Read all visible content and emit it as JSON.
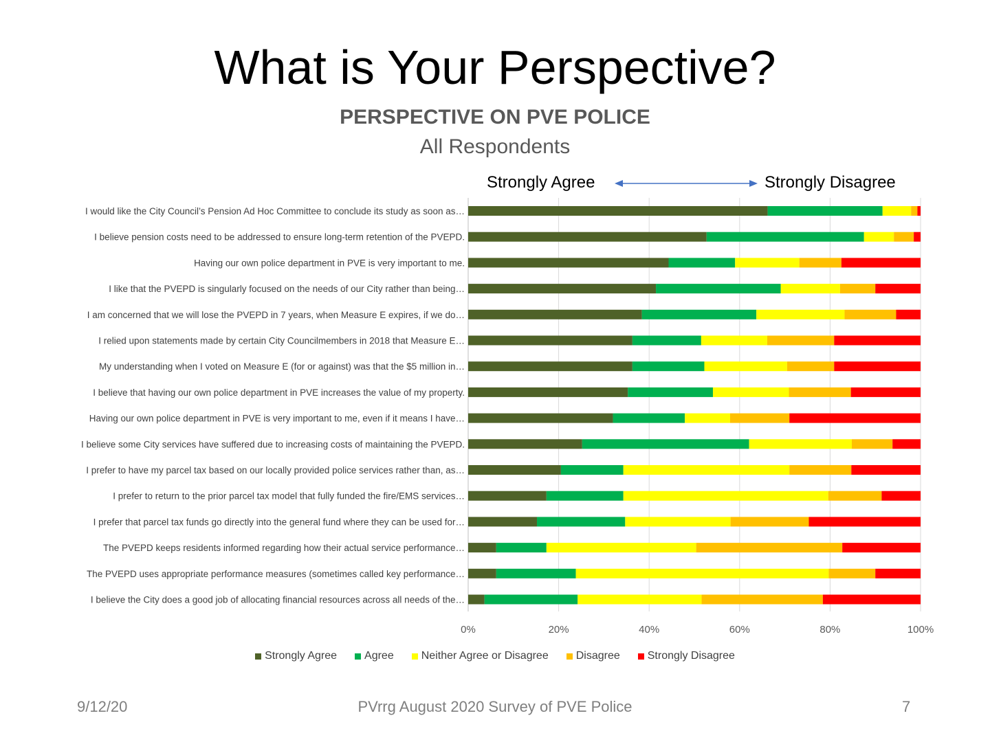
{
  "slide": {
    "title": "What is Your Perspective?",
    "footer_date": "9/12/20",
    "footer_center": "PVrrg August 2020 Survey of PVE Police",
    "page_number": "7"
  },
  "scale_annotation": {
    "left_label": "Strongly Agree",
    "right_label": "Strongly Disagree",
    "arrow_color": "#4472C4"
  },
  "chart_data": {
    "type": "bar",
    "orientation": "horizontal",
    "stacked": "percent",
    "title": "PERSPECTIVE ON PVE POLICE",
    "subtitle": "All Respondents",
    "xlim": [
      0,
      100
    ],
    "x_ticks": [
      "0%",
      "20%",
      "40%",
      "60%",
      "80%",
      "100%"
    ],
    "grid": true,
    "legend_position": "bottom",
    "categories": [
      "I would like the City Council’s Pension Ad Hoc Committee to conclude its study as soon as…",
      "I believe pension costs need to be addressed to ensure long-term retention of the PVEPD.",
      "Having our own police department in PVE is very important to me.",
      "I like that the PVEPD is singularly focused on the needs of our City rather than being…",
      "I am concerned that we will lose the PVEPD in 7 years, when Measure E expires, if we do…",
      "I relied upon statements made by certain City Councilmembers in 2018 that Measure E…",
      "My understanding when I voted on Measure E (for or against) was that the $5 million in…",
      "I believe that having our own police department in PVE increases the value of my property.",
      "Having our own police department in PVE is very important to me, even if it means I have…",
      "I believe some City services have suffered due to increasing costs of maintaining the PVEPD.",
      "I prefer to have my parcel tax based on our locally provided police services rather than, as…",
      "I prefer to return to the prior parcel tax model that fully funded the fire/EMS services…",
      "I prefer that parcel tax funds go directly into the general fund where they can be used for…",
      "The PVEPD keeps residents informed regarding how their actual service performance…",
      "The PVEPD uses appropriate performance measures (sometimes called key performance…",
      "I believe the City does a good job of allocating financial resources across all needs of the…"
    ],
    "series": [
      {
        "name": "Strongly Agree",
        "color": "#4F6228",
        "values": [
          66.2,
          52.7,
          44.3,
          41.5,
          38.4,
          36.3,
          36.3,
          35.3,
          32.0,
          25.2,
          20.5,
          17.3,
          15.2,
          6.2,
          6.2,
          3.6
        ]
      },
      {
        "name": "Agree",
        "color": "#00B050",
        "values": [
          25.4,
          34.8,
          14.7,
          27.6,
          25.3,
          15.2,
          15.9,
          18.8,
          15.9,
          36.9,
          13.8,
          17.0,
          19.5,
          11.1,
          17.6,
          20.6
        ]
      },
      {
        "name": "Neither Agree or Disagree",
        "color": "#FFFF00",
        "values": [
          6.3,
          6.6,
          14.2,
          13.1,
          19.5,
          14.6,
          18.3,
          16.8,
          10.0,
          22.7,
          36.7,
          45.3,
          23.3,
          33.1,
          55.9,
          27.4
        ]
      },
      {
        "name": "Disagree",
        "color": "#FFC000",
        "values": [
          1.4,
          4.4,
          9.3,
          7.8,
          11.4,
          14.8,
          10.4,
          13.7,
          13.1,
          9.0,
          13.7,
          11.8,
          17.3,
          32.3,
          10.3,
          26.8
        ]
      },
      {
        "name": "Strongly Disagree",
        "color": "#FF0000",
        "values": [
          0.7,
          1.5,
          17.5,
          10.0,
          5.4,
          19.1,
          19.1,
          15.4,
          29.0,
          6.2,
          15.3,
          8.6,
          24.7,
          17.3,
          10.0,
          21.6
        ]
      }
    ]
  }
}
